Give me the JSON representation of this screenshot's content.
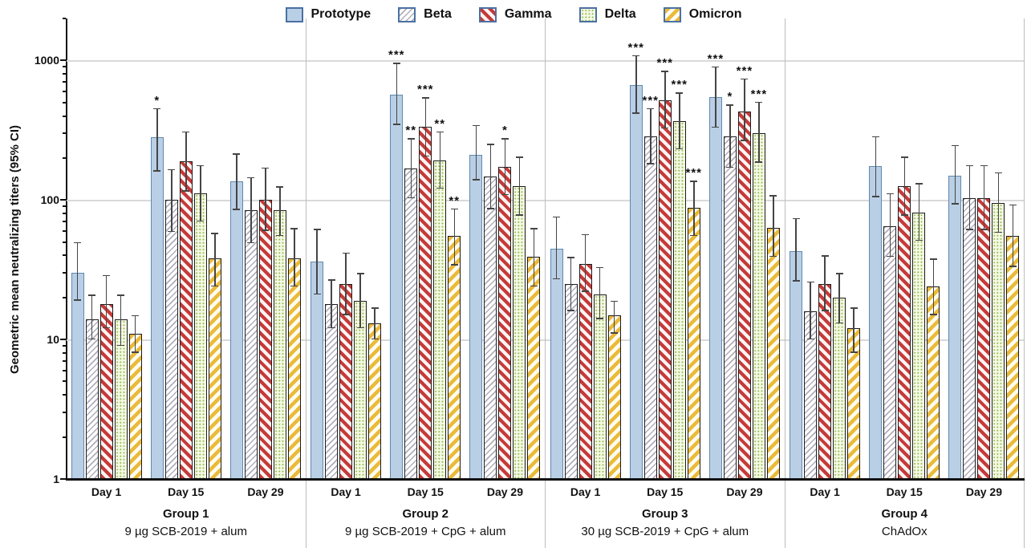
{
  "chart_data": {
    "type": "bar",
    "scale": "log",
    "ylabel": "Geometric mean neutralizing titers (95% CI)",
    "y_ticks": [
      1,
      10,
      100,
      1000
    ],
    "ylim": [
      1,
      2000
    ],
    "grid": "horizontal gridlines at powers of 10",
    "legend_position": "top-center",
    "error_bars": "95% confidence intervals with caps",
    "significance_note": "asterisks above bars: * ** ***",
    "series": [
      {
        "name": "Prototype",
        "swatch": "solid",
        "fill": "#b9cfe6",
        "accent": "#6188ae"
      },
      {
        "name": "Beta",
        "swatch": "thin-diagonal-hatch",
        "direction": "/",
        "fill": "#ffffff",
        "accent": "#b0aebc"
      },
      {
        "name": "Gamma",
        "swatch": "thick-diagonal-hatch",
        "direction": "\\",
        "fill": "#fdf4f2",
        "accent": "#c53a3a"
      },
      {
        "name": "Delta",
        "swatch": "dots",
        "fill": "#f6f8e4",
        "accent": "#8cbd4f"
      },
      {
        "name": "Omicron",
        "swatch": "thick-diagonal-hatch",
        "direction": "/",
        "fill": "#fffdf0",
        "accent": "#eaba3b"
      }
    ],
    "groups": [
      {
        "name": "Group 1",
        "treatment": "9 µg SCB-2019 + alum",
        "timepoints": [
          {
            "label": "Day 1",
            "values": [
              30,
              14,
              18,
              14,
              11
            ],
            "ci_low": [
              19,
              10,
              12,
              9,
              8
            ],
            "ci_high": [
              50,
              21,
              29,
              21,
              15
            ],
            "sig": [
              "",
              "",
              "",
              "",
              ""
            ]
          },
          {
            "label": "Day 15",
            "values": [
              280,
              100,
              190,
              112,
              38
            ],
            "ci_low": [
              160,
              59,
              115,
              70,
              24
            ],
            "ci_high": [
              455,
              166,
              310,
              178,
              58
            ],
            "sig": [
              "*",
              "",
              "",
              "",
              ""
            ]
          },
          {
            "label": "Day 29",
            "values": [
              136,
              84,
              100,
              84,
              38
            ],
            "ci_low": [
              85,
              49,
              60,
              55,
              24
            ],
            "ci_high": [
              215,
              146,
              171,
              125,
              63
            ],
            "sig": [
              "",
              "",
              "",
              "",
              ""
            ]
          }
        ]
      },
      {
        "name": "Group 2",
        "treatment": "9 µg SCB-2019 + CpG + alum",
        "timepoints": [
          {
            "label": "Day 1",
            "values": [
              36,
              18,
              25,
              19,
              13
            ],
            "ci_low": [
              21,
              12,
              15,
              12,
              10
            ],
            "ci_high": [
              62,
              27,
              42,
              30,
              17
            ],
            "sig": [
              "",
              "",
              "",
              "",
              ""
            ]
          },
          {
            "label": "Day 15",
            "values": [
              570,
              168,
              335,
              192,
              55
            ],
            "ci_low": [
              345,
              103,
              205,
              120,
              34
            ],
            "ci_high": [
              960,
              278,
              545,
              310,
              87
            ],
            "sig": [
              "***",
              "**",
              "***",
              "**",
              "**"
            ]
          },
          {
            "label": "Day 29",
            "values": [
              210,
              148,
              172,
              125,
              39
            ],
            "ci_low": [
              138,
              86,
              108,
              77,
              24
            ],
            "ci_high": [
              345,
              252,
              278,
              205,
              63
            ],
            "sig": [
              "",
              "",
              "*",
              "",
              ""
            ]
          }
        ]
      },
      {
        "name": "Group 3",
        "treatment": "30 µg SCB-2019 + CpG + alum",
        "timepoints": [
          {
            "label": "Day 1",
            "values": [
              45,
              25,
              35,
              21,
              15
            ],
            "ci_low": [
              27,
              16,
              22,
              14,
              11
            ],
            "ci_high": [
              76,
              39,
              57,
              33,
              19
            ],
            "sig": [
              "",
              "",
              "",
              "",
              ""
            ]
          },
          {
            "label": "Day 15",
            "values": [
              670,
              285,
              520,
              365,
              88
            ],
            "ci_low": [
              415,
              180,
              325,
              230,
              55
            ],
            "ci_high": [
              1090,
              455,
              845,
              590,
              137
            ],
            "sig": [
              "***",
              "***",
              "***",
              "***",
              "***"
            ]
          },
          {
            "label": "Day 29",
            "values": [
              545,
              285,
              430,
              300,
              63
            ],
            "ci_low": [
              330,
              170,
              265,
              185,
              39
            ],
            "ci_high": [
              905,
              485,
              745,
              505,
              108
            ],
            "sig": [
              "***",
              "*",
              "***",
              "***",
              ""
            ]
          }
        ]
      },
      {
        "name": "Group 4",
        "treatment": "ChAdOx",
        "timepoints": [
          {
            "label": "Day 1",
            "values": [
              43,
              16,
              25,
              20,
              12
            ],
            "ci_low": [
              26,
              10,
              16,
              13,
              8
            ],
            "ci_high": [
              74,
              26,
              40,
              30,
              17
            ],
            "sig": [
              "",
              "",
              "",
              "",
              ""
            ]
          },
          {
            "label": "Day 15",
            "values": [
              175,
              65,
              125,
              81,
              24
            ],
            "ci_low": [
              105,
              39,
              77,
              51,
              15
            ],
            "ci_high": [
              287,
              112,
              205,
              132,
              38
            ],
            "sig": [
              "",
              "",
              "",
              "",
              ""
            ]
          },
          {
            "label": "Day 29",
            "values": [
              150,
              103,
              103,
              95,
              55
            ],
            "ci_low": [
              93,
              61,
              61,
              58,
              33
            ],
            "ci_high": [
              248,
              178,
              178,
              158,
              93
            ],
            "sig": [
              "",
              "",
              "",
              "",
              ""
            ]
          }
        ]
      }
    ]
  },
  "colors": {
    "axis": "#111111",
    "gridline": "#d9d9d9",
    "group_separator": "#bdbdbd",
    "error_bar": "#454545",
    "legend_swatch_border": "#4a70a3"
  }
}
